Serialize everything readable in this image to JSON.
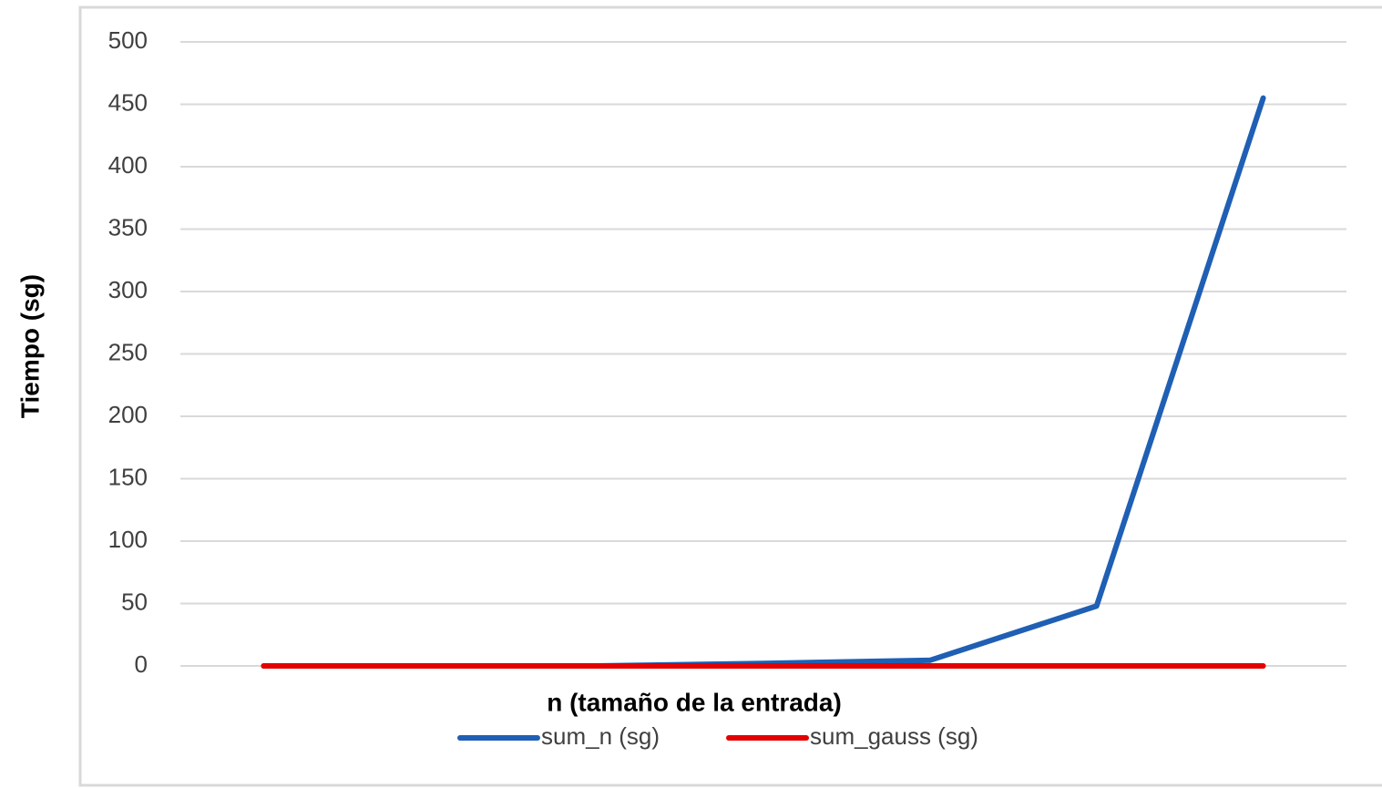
{
  "chart_data": {
    "type": "line",
    "xlabel": "n (tamaño de la entrada)",
    "ylabel": "Tiempo (sg)",
    "categories": [
      null,
      null,
      null,
      null,
      null,
      null,
      null
    ],
    "series": [
      {
        "name": "sum_n (sg)",
        "color": "#1f5fb4",
        "values": [
          0,
          0,
          0,
          2,
          4.5,
          48,
          455
        ]
      },
      {
        "name": "sum_gauss (sg)",
        "color": "#e30000",
        "values": [
          0,
          0,
          0,
          0,
          0,
          0,
          0
        ]
      }
    ],
    "ylim": [
      0,
      500
    ],
    "yticks": [
      0,
      50,
      100,
      150,
      200,
      250,
      300,
      350,
      400,
      450,
      500
    ],
    "grid": true,
    "legend": "bottom"
  }
}
